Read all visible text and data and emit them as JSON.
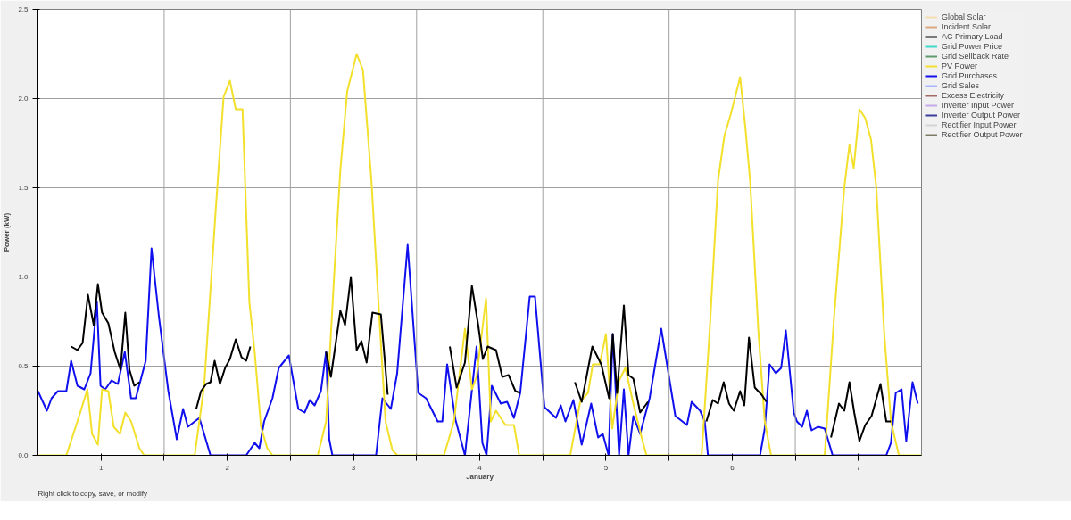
{
  "chart_data": {
    "type": "line",
    "xlabel": "January",
    "ylabel": "Power (kW)",
    "annotations": [
      "Right click to copy, save, or modify"
    ],
    "xlim": [
      0.5,
      7.5
    ],
    "ylim": [
      0,
      2.5
    ],
    "xticks": [
      1,
      {
        "value": 1.5,
        "label": null
      },
      2,
      {
        "value": 2.5,
        "label": null
      },
      3,
      {
        "value": 3.5,
        "label": null
      },
      4,
      {
        "value": 4.5,
        "label": null
      },
      5,
      {
        "value": 5.5,
        "label": null
      },
      6,
      {
        "value": 6.5,
        "label": null
      },
      7
    ],
    "yticks": [
      {
        "value": 0,
        "label": "0.0"
      },
      {
        "value": 0.5,
        "label": "0.5"
      },
      {
        "value": 1,
        "label": "1.0"
      },
      {
        "value": 1.5,
        "label": "1.5"
      },
      {
        "value": 2,
        "label": "2.0"
      },
      {
        "value": 2.5,
        "label": "2.5"
      }
    ],
    "grid": true,
    "legend": "top right",
    "marker": "none",
    "line_style": "solid",
    "series": [
      {
        "name": "Global Solar",
        "color": "#f2dcb0"
      },
      {
        "name": "Incident Solar",
        "color": "#dca880"
      },
      {
        "name": "AC Primary Load",
        "color": "#000000",
        "x": [
          0.763,
          0.813,
          0.854,
          0.896,
          0.942,
          0.975,
          1.008,
          1.058,
          1.108,
          1.154,
          1.192,
          1.225,
          1.263,
          1.304,
          1.317,
          1.754,
          1.792,
          1.833,
          1.867,
          1.9,
          1.942,
          1.983,
          2.021,
          2.067,
          2.113,
          2.15,
          2.183,
          2.192,
          2.783,
          2.821,
          2.896,
          2.933,
          2.979,
          3.025,
          3.063,
          3.104,
          3.15,
          3.217,
          3.271,
          3.279,
          3.763,
          3.817,
          3.883,
          3.938,
          3.988,
          4.025,
          4.063,
          4.129,
          4.179,
          4.229,
          4.283,
          4.321,
          4.329,
          4.754,
          4.808,
          4.892,
          4.963,
          5.025,
          5.054,
          5.088,
          5.142,
          5.179,
          5.217,
          5.271,
          5.333,
          5.342,
          5.796,
          5.846,
          5.888,
          5.933,
          5.975,
          6.013,
          6.063,
          6.096,
          6.133,
          6.179,
          6.233,
          6.271,
          6.279,
          6.783,
          6.846,
          6.888,
          6.929,
          6.967,
          7.008,
          7.054,
          7.104,
          7.175,
          7.221,
          7.258
        ],
        "values": [
          0.61,
          0.59,
          0.63,
          0.9,
          0.73,
          0.96,
          0.8,
          0.74,
          0.58,
          0.48,
          0.8,
          0.48,
          0.39,
          0.41,
          null,
          0.26,
          0.36,
          0.4,
          0.41,
          0.53,
          0.4,
          0.49,
          0.54,
          0.65,
          0.55,
          0.53,
          0.61,
          null,
          0.58,
          0.44,
          0.81,
          0.73,
          1.0,
          0.59,
          0.64,
          0.52,
          0.8,
          0.79,
          0.34,
          null,
          0.61,
          0.38,
          0.52,
          0.95,
          0.73,
          0.54,
          0.61,
          0.59,
          0.44,
          0.45,
          0.36,
          0.35,
          null,
          0.41,
          0.3,
          0.61,
          0.51,
          0.32,
          0.68,
          0.35,
          0.84,
          0.45,
          0.43,
          0.24,
          0.3,
          null,
          0.19,
          0.31,
          0.29,
          0.41,
          0.29,
          0.25,
          0.36,
          0.28,
          0.66,
          0.38,
          0.34,
          0.3,
          null,
          0.1,
          0.29,
          0.25,
          0.41,
          0.24,
          0.08,
          0.17,
          0.22,
          0.4,
          0.19,
          0.19
        ]
      },
      {
        "name": "Grid Power Price",
        "color": "#40d8c8"
      },
      {
        "name": "Grid Sellback Rate",
        "color": "#5e9a6a"
      },
      {
        "name": "PV Power",
        "color": "#f2e02a",
        "x": [
          0.5,
          0.725,
          0.813,
          0.892,
          0.929,
          0.975,
          1.008,
          1.058,
          1.1,
          1.15,
          1.192,
          1.238,
          1.304,
          1.342,
          1.742,
          1.817,
          1.908,
          1.971,
          2.021,
          2.067,
          2.121,
          2.175,
          2.217,
          2.267,
          2.317,
          2.358,
          2.717,
          2.783,
          2.846,
          2.896,
          2.95,
          3.025,
          3.075,
          3.142,
          3.204,
          3.254,
          3.308,
          3.346,
          3.717,
          3.796,
          3.883,
          3.938,
          3.975,
          4.05,
          4.088,
          4.129,
          4.204,
          4.271,
          4.313,
          4.717,
          4.796,
          4.858,
          4.896,
          4.95,
          5.0,
          5.05,
          5.104,
          5.154,
          5.217,
          5.283,
          5.321,
          5.758,
          5.821,
          5.888,
          5.938,
          5.988,
          6.063,
          6.104,
          6.142,
          6.208,
          6.258,
          6.308,
          6.733,
          6.808,
          6.888,
          6.929,
          6.963,
          7.008,
          7.054,
          7.1,
          7.142,
          7.204,
          7.258,
          7.321,
          7.5
        ],
        "values": [
          0,
          0,
          0.19,
          0.37,
          0.12,
          0.06,
          0.37,
          0.36,
          0.16,
          0.12,
          0.24,
          0.19,
          0.04,
          0,
          0,
          0.39,
          1.37,
          2.01,
          2.1,
          1.94,
          1.94,
          0.86,
          0.58,
          0.16,
          0.04,
          0,
          0,
          0.19,
          1.0,
          1.6,
          2.04,
          2.25,
          2.16,
          1.54,
          0.78,
          0.19,
          0.03,
          0,
          0,
          0.19,
          0.71,
          0.37,
          0.44,
          0.88,
          0.19,
          0.25,
          0.17,
          0.17,
          0,
          0,
          0.3,
          0.35,
          0.51,
          0.51,
          0.68,
          0.15,
          0.42,
          0.49,
          0.29,
          0.1,
          0,
          0,
          0.69,
          1.54,
          1.79,
          1.91,
          2.12,
          1.84,
          1.54,
          0.69,
          0.19,
          0,
          0,
          0.78,
          1.5,
          1.74,
          1.61,
          1.94,
          1.89,
          1.77,
          1.5,
          0.69,
          0.19,
          0,
          0
        ]
      },
      {
        "name": "Grid Purchases",
        "color": "#1010ee",
        "x": [
          0.5,
          0.571,
          0.608,
          0.658,
          0.725,
          0.763,
          0.813,
          0.867,
          0.917,
          0.967,
          0.996,
          1.033,
          1.083,
          1.133,
          1.188,
          1.238,
          1.275,
          1.354,
          1.4,
          1.458,
          1.533,
          1.6,
          1.65,
          1.688,
          1.779,
          1.867,
          2.15,
          2.217,
          2.254,
          2.292,
          2.358,
          2.408,
          2.488,
          2.563,
          2.613,
          2.654,
          2.692,
          2.742,
          2.783,
          2.808,
          2.833,
          3.179,
          3.229,
          3.296,
          3.346,
          3.429,
          3.513,
          3.575,
          3.667,
          3.704,
          3.742,
          3.808,
          3.883,
          3.975,
          4.021,
          4.054,
          4.096,
          4.167,
          4.217,
          4.271,
          4.321,
          4.396,
          4.438,
          4.513,
          4.604,
          4.642,
          4.679,
          4.742,
          4.808,
          4.883,
          4.938,
          4.975,
          5.021,
          5.054,
          5.104,
          5.142,
          5.179,
          5.217,
          5.271,
          5.346,
          5.438,
          5.55,
          5.642,
          5.679,
          5.746,
          5.783,
          5.808,
          6.221,
          6.258,
          6.296,
          6.346,
          6.388,
          6.425,
          6.488,
          6.513,
          6.554,
          6.592,
          6.629,
          6.679,
          6.733,
          6.796,
          7.221,
          7.258,
          7.296,
          7.342,
          7.379,
          7.429,
          7.471
        ],
        "values": [
          0.36,
          0.25,
          0.32,
          0.36,
          0.36,
          0.53,
          0.39,
          0.37,
          0.46,
          0.86,
          0.39,
          0.37,
          0.42,
          0.4,
          0.58,
          0.32,
          0.32,
          0.53,
          1.16,
          0.78,
          0.36,
          0.09,
          0.26,
          0.16,
          0.21,
          0,
          0,
          0.07,
          0.04,
          0.19,
          0.32,
          0.49,
          0.56,
          0.26,
          0.24,
          0.31,
          0.28,
          0.36,
          0.58,
          0.09,
          0,
          0,
          0.32,
          0.26,
          0.46,
          1.18,
          0.35,
          0.32,
          0.19,
          0.19,
          0.51,
          0.2,
          0,
          0.61,
          0.07,
          0,
          0.39,
          0.29,
          0.3,
          0.21,
          0.35,
          0.89,
          0.89,
          0.27,
          0.21,
          0.28,
          0.19,
          0.31,
          0.06,
          0.29,
          0.1,
          0.12,
          0,
          0.68,
          0,
          0.37,
          0,
          0.22,
          0.12,
          0.32,
          0.71,
          0.22,
          0.17,
          0.3,
          0.25,
          0.19,
          0,
          0,
          0.15,
          0.51,
          0.46,
          0.49,
          0.7,
          0.24,
          0.19,
          0.16,
          0.25,
          0.14,
          0.16,
          0.15,
          0,
          0,
          0.07,
          0.35,
          0.37,
          0.08,
          0.41,
          0.29
        ]
      },
      {
        "name": "Grid Sales",
        "color": "#aab4ff"
      },
      {
        "name": "Excess Electricity",
        "color": "#a06a60"
      },
      {
        "name": "Inverter Input Power",
        "color": "#c4a8e8"
      },
      {
        "name": "Inverter Output Power",
        "color": "#3c3c9c"
      },
      {
        "name": "Rectifier Input Power",
        "color": "#d4d4d4"
      },
      {
        "name": "Rectifier Output Power",
        "color": "#7c7c64"
      }
    ]
  }
}
